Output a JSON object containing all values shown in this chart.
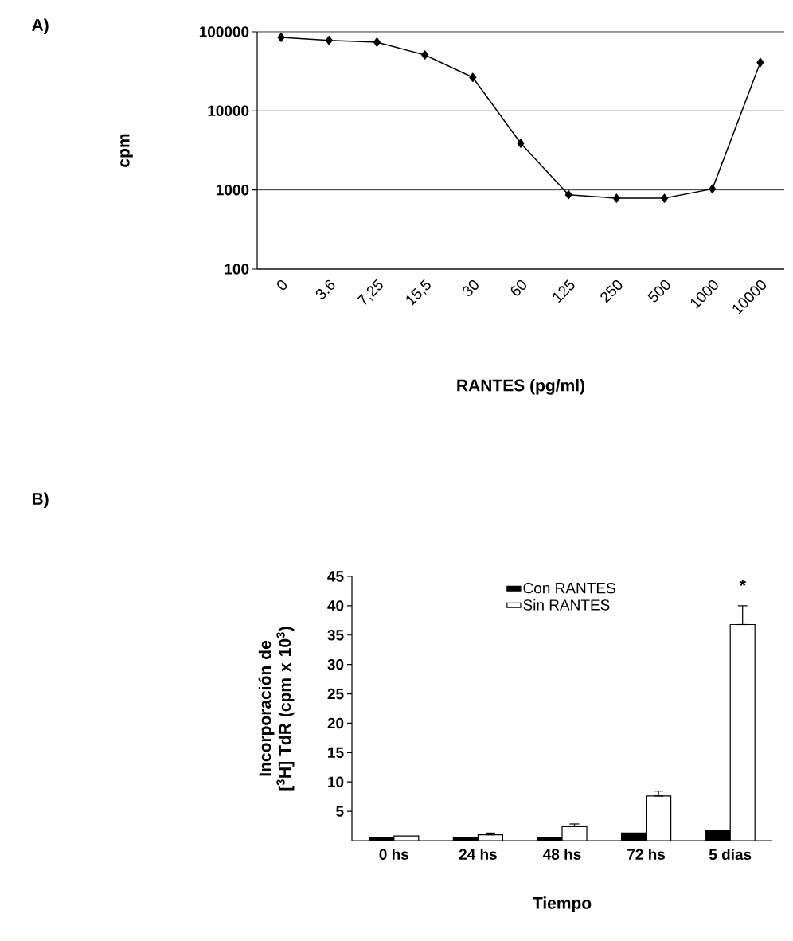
{
  "chart_data": [
    {
      "type": "line",
      "xlabel": "RANTES (pg/ml)",
      "ylabel": "cpm",
      "categories": [
        "0",
        "3.6",
        "7,25",
        "15,5",
        "30",
        "60",
        "125",
        "250",
        "500",
        "1000",
        "10000"
      ],
      "series": [
        {
          "color": "#000000",
          "values": [
            85000,
            78000,
            74000,
            51000,
            26500,
            3900,
            870,
            785,
            785,
            1030,
            41000
          ]
        }
      ],
      "log": "y",
      "ylim": [
        100,
        100000
      ],
      "yticks": [
        100,
        1000,
        10000,
        100000
      ],
      "grid": "y",
      "marker": "diamond",
      "line_style": "solid",
      "annotations": [
        "A)"
      ]
    },
    {
      "type": "bar",
      "xlabel": "Tiempo",
      "ylabel": "Incorporación de [$^{3}$H] TdR (cpm x 10$^{3}$)",
      "categories": [
        "0  hs",
        "24 hs",
        "48 hs",
        "72 hs",
        "5 días"
      ],
      "series": [
        {
          "name": "Con RANTES",
          "color": "#000000",
          "values": [
            0.6,
            0.6,
            0.6,
            1.3,
            1.8
          ]
        },
        {
          "name": "Sin RANTES",
          "color": "#ffffff",
          "values": [
            0.8,
            1.0,
            2.4,
            7.6,
            36.8
          ],
          "errors": [
            null,
            [
              1.0,
              1.3
            ],
            [
              2.4,
              2.85
            ],
            [
              7.6,
              8.45
            ],
            [
              36.8,
              40
            ]
          ]
        }
      ],
      "ylim": [
        0,
        45
      ],
      "yticks": [
        5,
        10,
        15,
        20,
        25,
        30,
        35,
        40,
        45
      ],
      "legend": "top",
      "annotations": [
        "B)",
        "*"
      ]
    }
  ]
}
